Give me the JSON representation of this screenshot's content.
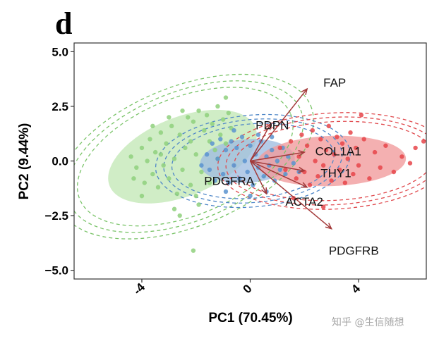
{
  "panel_label": "d",
  "watermark": "知乎 @生信随想",
  "chart_data": {
    "type": "scatter",
    "subtype": "pca-biplot",
    "title": "",
    "xlabel": "PC1 (70.45%)",
    "ylabel": "PC2 (9.44%)",
    "xlim": [
      -6.5,
      6.5
    ],
    "ylim": [
      -5.4,
      5.4
    ],
    "xticks": [
      -4,
      0,
      4
    ],
    "xtick_labels": [
      "-4",
      "0",
      "4"
    ],
    "yticks": [
      5.0,
      2.5,
      0.0,
      -2.5,
      -5.0
    ],
    "ytick_labels": [
      "5.0",
      "2.5",
      "0.0",
      "−2.5",
      "−5.0"
    ],
    "grid": false,
    "groups": [
      {
        "name": "green",
        "color": "#8fd07c",
        "ellipse_fill": "#c3e8b6",
        "ellipse_line": "#7bc46a",
        "ellipse": {
          "cx": -2.5,
          "cy": 0.2,
          "rx": 2.9,
          "ry": 1.8,
          "angle": 22
        },
        "confidence_ellipses": [
          {
            "cx": -2.4,
            "cy": 0.2,
            "rx": 4.2,
            "ry": 2.7,
            "angle": 22
          },
          {
            "cx": -2.4,
            "cy": 0.2,
            "rx": 4.6,
            "ry": 2.95,
            "angle": 22
          },
          {
            "cx": -2.4,
            "cy": 0.2,
            "rx": 5.0,
            "ry": 3.2,
            "angle": 22
          }
        ],
        "points": [
          [
            -4.4,
            0.2
          ],
          [
            -4.2,
            -0.3
          ],
          [
            -4.0,
            0.6
          ],
          [
            -3.9,
            -1.0
          ],
          [
            -3.8,
            0.0
          ],
          [
            -3.7,
            1.0
          ],
          [
            -3.6,
            -0.6
          ],
          [
            -3.5,
            0.4
          ],
          [
            -3.4,
            -1.2
          ],
          [
            -3.3,
            1.3
          ],
          [
            -3.2,
            -0.2
          ],
          [
            -3.1,
            0.8
          ],
          [
            -3.0,
            -0.8
          ],
          [
            -2.9,
            1.6
          ],
          [
            -2.8,
            0.1
          ],
          [
            -2.7,
            -1.5
          ],
          [
            -2.6,
            1.2
          ],
          [
            -2.5,
            -0.4
          ],
          [
            -2.4,
            0.6
          ],
          [
            -2.3,
            2.0
          ],
          [
            -2.2,
            -1.1
          ],
          [
            -2.1,
            1.8
          ],
          [
            -2.0,
            0.3
          ],
          [
            -1.9,
            2.3
          ],
          [
            -1.8,
            -0.5
          ],
          [
            -1.7,
            1.4
          ],
          [
            -1.6,
            2.1
          ],
          [
            -1.5,
            0.9
          ],
          [
            -1.4,
            1.7
          ],
          [
            -1.3,
            0.5
          ],
          [
            -1.2,
            2.5
          ],
          [
            -1.1,
            1.2
          ],
          [
            -1.0,
            1.9
          ],
          [
            -0.9,
            0.8
          ],
          [
            -0.8,
            2.2
          ],
          [
            -0.7,
            1.5
          ],
          [
            -3.6,
            1.6
          ],
          [
            -4.3,
            -0.8
          ],
          [
            -2.5,
            2.3
          ],
          [
            -2.0,
            -1.6
          ],
          [
            -3.0,
            2.0
          ],
          [
            -1.5,
            -1.0
          ],
          [
            -2.8,
            -2.2
          ],
          [
            -1.9,
            -2.0
          ],
          [
            -4.0,
            -1.6
          ],
          [
            -1.2,
            0.1
          ],
          [
            -2.2,
            0.9
          ],
          [
            -3.3,
            0.3
          ],
          [
            -2.6,
            -2.5
          ],
          [
            -0.9,
            2.9
          ],
          [
            -2.1,
            -4.1
          ]
        ]
      },
      {
        "name": "blue",
        "color": "#5b93cf",
        "ellipse_fill": "#9fbde0",
        "ellipse_line": "#4f87c8",
        "ellipse": {
          "cx": -0.1,
          "cy": 0.0,
          "rx": 1.75,
          "ry": 1.0,
          "angle": 4
        },
        "confidence_ellipses": [
          {
            "cx": 0.1,
            "cy": 0.0,
            "rx": 3.0,
            "ry": 1.7,
            "angle": 5
          },
          {
            "cx": 0.1,
            "cy": 0.0,
            "rx": 3.3,
            "ry": 1.9,
            "angle": 5
          },
          {
            "cx": 0.1,
            "cy": 0.0,
            "rx": 3.6,
            "ry": 2.1,
            "angle": 5
          }
        ],
        "points": [
          [
            -1.6,
            0.3
          ],
          [
            -1.5,
            -0.4
          ],
          [
            -1.4,
            0.8
          ],
          [
            -1.3,
            -0.9
          ],
          [
            -1.2,
            0.1
          ],
          [
            -1.1,
            1.0
          ],
          [
            -1.0,
            -0.6
          ],
          [
            -0.9,
            0.5
          ],
          [
            -0.8,
            -1.0
          ],
          [
            -0.7,
            0.9
          ],
          [
            -0.6,
            -0.2
          ],
          [
            -0.5,
            0.6
          ],
          [
            -0.4,
            -0.8
          ],
          [
            -0.3,
            1.1
          ],
          [
            -0.2,
            0.0
          ],
          [
            -0.1,
            -0.5
          ],
          [
            0.0,
            0.7
          ],
          [
            0.1,
            -1.1
          ],
          [
            0.2,
            0.3
          ],
          [
            0.3,
            -0.3
          ],
          [
            0.4,
            0.9
          ],
          [
            0.5,
            -0.7
          ],
          [
            0.6,
            0.2
          ],
          [
            0.7,
            -0.2
          ],
          [
            0.8,
            0.5
          ],
          [
            0.9,
            -0.9
          ],
          [
            1.0,
            0.0
          ],
          [
            1.1,
            -0.4
          ],
          [
            1.2,
            0.6
          ],
          [
            1.3,
            -0.6
          ],
          [
            1.4,
            0.2
          ],
          [
            1.6,
            -0.1
          ],
          [
            -0.6,
            1.4
          ],
          [
            0.3,
            1.2
          ],
          [
            -0.9,
            -1.4
          ],
          [
            0.6,
            -1.4
          ],
          [
            1.8,
            -0.5
          ],
          [
            -1.8,
            -0.2
          ],
          [
            0.0,
            -1.6
          ],
          [
            0.8,
            1.1
          ]
        ]
      },
      {
        "name": "red",
        "color": "#e6454a",
        "ellipse_fill": "#f19a9b",
        "ellipse_line": "#e04a4e",
        "ellipse": {
          "cx": 3.0,
          "cy": 0.0,
          "rx": 2.75,
          "ry": 1.15,
          "angle": 2
        },
        "confidence_ellipses": [
          {
            "cx": 3.1,
            "cy": 0.0,
            "rx": 3.7,
            "ry": 1.8,
            "angle": 3
          },
          {
            "cx": 3.1,
            "cy": 0.0,
            "rx": 4.0,
            "ry": 2.0,
            "angle": 3
          },
          {
            "cx": 3.1,
            "cy": 0.0,
            "rx": 4.3,
            "ry": 2.2,
            "angle": 3
          }
        ],
        "points": [
          [
            1.1,
            0.6
          ],
          [
            1.3,
            -0.4
          ],
          [
            1.5,
            0.9
          ],
          [
            1.7,
            -0.8
          ],
          [
            1.8,
            0.2
          ],
          [
            1.9,
            1.2
          ],
          [
            2.0,
            -0.5
          ],
          [
            2.1,
            0.7
          ],
          [
            2.2,
            -1.1
          ],
          [
            2.3,
            1.4
          ],
          [
            2.4,
            0.0
          ],
          [
            2.5,
            -0.7
          ],
          [
            2.6,
            1.0
          ],
          [
            2.7,
            -0.2
          ],
          [
            2.8,
            0.5
          ],
          [
            2.9,
            1.6
          ],
          [
            3.0,
            -0.9
          ],
          [
            3.1,
            0.3
          ],
          [
            3.2,
            1.1
          ],
          [
            3.3,
            -0.4
          ],
          [
            3.4,
            0.8
          ],
          [
            3.5,
            -1.0
          ],
          [
            3.6,
            0.1
          ],
          [
            3.7,
            1.3
          ],
          [
            3.8,
            -0.6
          ],
          [
            3.9,
            0.6
          ],
          [
            4.0,
            -0.2
          ],
          [
            4.2,
            1.0
          ],
          [
            4.4,
            -0.8
          ],
          [
            4.6,
            0.4
          ],
          [
            4.8,
            -0.3
          ],
          [
            5.0,
            0.7
          ],
          [
            5.3,
            -0.5
          ],
          [
            5.6,
            0.2
          ],
          [
            6.1,
            0.6
          ],
          [
            6.4,
            0.9
          ],
          [
            2.7,
            -2.1
          ],
          [
            1.6,
            -1.7
          ],
          [
            4.1,
            2.1
          ],
          [
            5.9,
            -0.1
          ]
        ]
      }
    ],
    "loadings": [
      {
        "label": "FAP",
        "x": 2.1,
        "y": 3.3,
        "label_x": 2.7,
        "label_y": 3.6
      },
      {
        "label": "PDPN",
        "x": 0.75,
        "y": 1.7,
        "label_x": 0.2,
        "label_y": 1.65
      },
      {
        "label": "COL1A1",
        "x": 2.0,
        "y": 0.4,
        "label_x": 2.4,
        "label_y": 0.45
      },
      {
        "label": "THY1",
        "x": 2.0,
        "y": -0.45,
        "label_x": 2.6,
        "label_y": -0.55
      },
      {
        "label": "PDGFRA",
        "x": 0.6,
        "y": -1.5,
        "label_x": -1.7,
        "label_y": -0.9
      },
      {
        "label": "ACTA2",
        "x": 2.1,
        "y": -1.2,
        "label_x": 1.3,
        "label_y": -1.85
      },
      {
        "label": "PDGFRB",
        "x": 3.0,
        "y": -3.1,
        "label_x": 2.9,
        "label_y": -4.1
      }
    ],
    "arrow_color": "#a33a3a"
  }
}
